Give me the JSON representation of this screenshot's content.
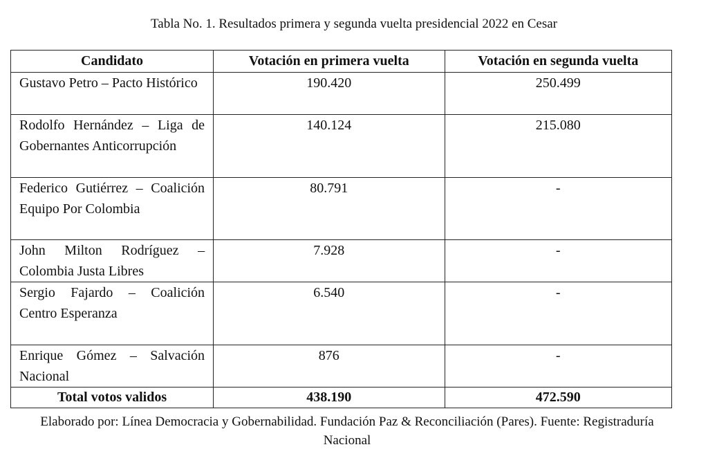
{
  "header": {
    "title": "Tabla No. 1. Resultados primera y segunda vuelta presidencial 2022 en Cesar"
  },
  "table": {
    "columns": [
      "Candidato",
      "Votación en primera vuelta",
      "Votación en segunda vuelta"
    ],
    "rows": [
      [
        "Gustavo Petro – Pacto Histórico",
        "190.420",
        "250.499"
      ],
      [
        "Rodolfo Hernández – Liga de Gobernantes Anticorrupción",
        "140.124",
        "215.080"
      ],
      [
        "Federico Gutiérrez – Coalición Equipo Por Colombia",
        "80.791",
        "-"
      ],
      [
        "John Milton Rodríguez – Colombia Justa Libres",
        "7.928",
        "-"
      ],
      [
        "Sergio Fajardo – Coalición Centro Esperanza",
        "6.540",
        "-"
      ],
      [
        "Enrique Gómez – Salvación Nacional",
        "876",
        "-"
      ]
    ],
    "total": [
      "Total votos validos",
      "438.190",
      "472.590"
    ]
  },
  "footer": {
    "source": "Elaborado por: Línea Democracia y Gobernabilidad. Fundación Paz & Reconciliación (Pares). Fuente: Registraduría Nacional"
  }
}
